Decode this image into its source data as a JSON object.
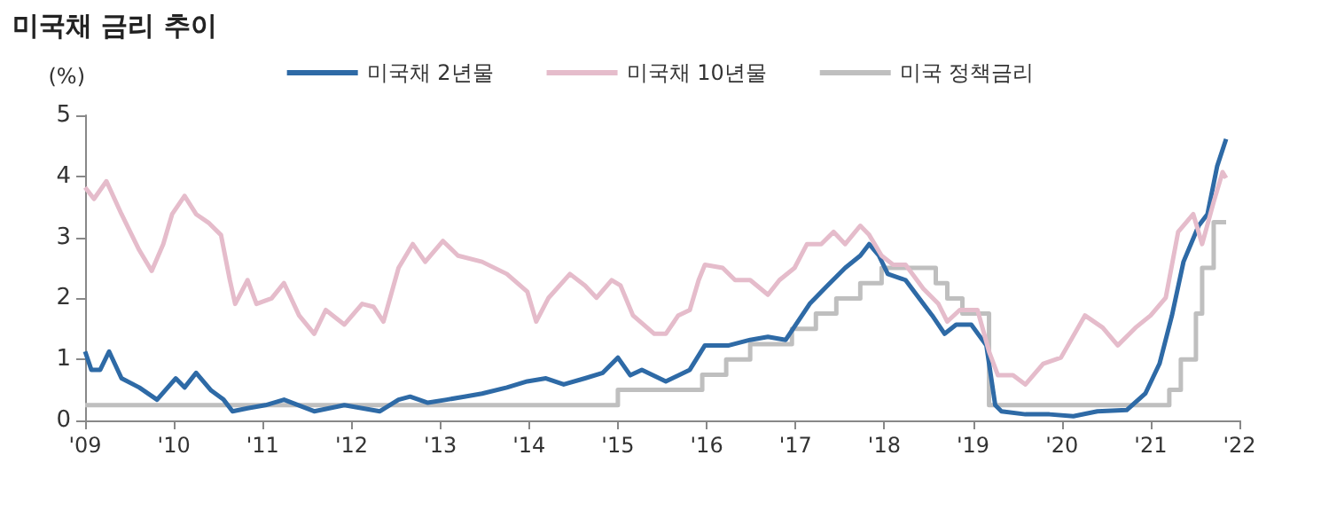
{
  "chart_data": {
    "type": "line",
    "title": "미국채 금리 추이",
    "ylabel": "(%)",
    "legend": "top",
    "grid": false,
    "marker": "none",
    "line_style": "solid",
    "xlim": [
      2009,
      2022
    ],
    "xticks": [
      {
        "value": 2009,
        "label": "'09"
      },
      {
        "value": 2010,
        "label": "'10"
      },
      {
        "value": 2011,
        "label": "'11"
      },
      {
        "value": 2012,
        "label": "'12"
      },
      {
        "value": 2013,
        "label": "'13"
      },
      {
        "value": 2014,
        "label": "'14"
      },
      {
        "value": 2015,
        "label": "'15"
      },
      {
        "value": 2016,
        "label": "'16"
      },
      {
        "value": 2017,
        "label": "'17"
      },
      {
        "value": 2018,
        "label": "'18"
      },
      {
        "value": 2019,
        "label": "'19"
      },
      {
        "value": 2020,
        "label": "'20"
      },
      {
        "value": 2021,
        "label": "'21"
      },
      {
        "value": 2022,
        "label": "'22"
      }
    ],
    "ylim": [
      0,
      5
    ],
    "yticks": [
      0,
      1,
      2,
      3,
      4,
      5
    ],
    "series": [
      {
        "name": "미국채 2년물",
        "color": "#2e6aa6",
        "x": [
          2009.0,
          2009.07,
          2009.17,
          2009.27,
          2009.41,
          2009.61,
          2009.81,
          2010.02,
          2010.12,
          2010.25,
          2010.42,
          2010.56,
          2010.66,
          2010.83,
          2011.03,
          2011.24,
          2011.58,
          2011.92,
          2012.32,
          2012.53,
          2012.66,
          2012.86,
          2013.07,
          2013.27,
          2013.47,
          2013.75,
          2013.98,
          2014.19,
          2014.39,
          2014.63,
          2014.83,
          2015.0,
          2015.14,
          2015.27,
          2015.54,
          2015.81,
          2015.98,
          2016.25,
          2016.49,
          2016.69,
          2016.89,
          2017.16,
          2017.36,
          2017.56,
          2017.73,
          2017.83,
          2017.94,
          2018.04,
          2018.24,
          2018.44,
          2018.54,
          2018.68,
          2018.81,
          2018.98,
          2019.15,
          2019.25,
          2019.32,
          2019.59,
          2019.86,
          2020.13,
          2020.4,
          2020.73,
          2020.94,
          2021.1,
          2021.24,
          2021.37,
          2021.54,
          2021.64,
          2021.75,
          2021.85
        ],
        "values": [
          1.13,
          0.83,
          0.83,
          1.13,
          0.69,
          0.54,
          0.34,
          0.69,
          0.54,
          0.78,
          0.49,
          0.34,
          0.15,
          0.2,
          0.25,
          0.34,
          0.15,
          0.25,
          0.15,
          0.34,
          0.39,
          0.29,
          0.34,
          0.39,
          0.44,
          0.54,
          0.64,
          0.69,
          0.59,
          0.69,
          0.78,
          1.03,
          0.74,
          0.83,
          0.64,
          0.83,
          1.23,
          1.23,
          1.32,
          1.37,
          1.32,
          1.91,
          2.21,
          2.5,
          2.7,
          2.89,
          2.7,
          2.4,
          2.3,
          1.91,
          1.72,
          1.42,
          1.57,
          1.57,
          1.23,
          0.25,
          0.15,
          0.1,
          0.1,
          0.07,
          0.15,
          0.17,
          0.44,
          0.93,
          1.72,
          2.6,
          3.19,
          3.38,
          4.17,
          4.61
        ]
      },
      {
        "name": "미국채 10년물",
        "color": "#e5bccb",
        "x": [
          2009.0,
          2009.1,
          2009.24,
          2009.41,
          2009.61,
          2009.75,
          2009.88,
          2009.98,
          2010.12,
          2010.25,
          2010.39,
          2010.53,
          2010.63,
          2010.69,
          2010.83,
          2010.93,
          2011.1,
          2011.24,
          2011.41,
          2011.58,
          2011.71,
          2011.92,
          2012.12,
          2012.25,
          2012.36,
          2012.53,
          2012.69,
          2012.83,
          2013.03,
          2013.2,
          2013.47,
          2013.75,
          2013.98,
          2014.08,
          2014.22,
          2014.46,
          2014.63,
          2014.76,
          2014.93,
          2015.03,
          2015.17,
          2015.41,
          2015.54,
          2015.68,
          2015.81,
          2015.91,
          2015.98,
          2016.18,
          2016.32,
          2016.49,
          2016.69,
          2016.82,
          2016.99,
          2017.13,
          2017.29,
          2017.43,
          2017.56,
          2017.73,
          2017.83,
          2017.97,
          2018.1,
          2018.24,
          2018.44,
          2018.61,
          2018.71,
          2018.85,
          2019.05,
          2019.18,
          2019.28,
          2019.45,
          2019.59,
          2019.79,
          2019.99,
          2020.26,
          2020.46,
          2020.63,
          2020.83,
          2021.0,
          2021.17,
          2021.31,
          2021.48,
          2021.58,
          2021.71,
          2021.81,
          2021.85
        ],
        "values": [
          3.82,
          3.63,
          3.92,
          3.38,
          2.79,
          2.45,
          2.89,
          3.38,
          3.68,
          3.38,
          3.24,
          3.04,
          2.3,
          1.91,
          2.3,
          1.91,
          2.0,
          2.25,
          1.72,
          1.42,
          1.81,
          1.57,
          1.91,
          1.86,
          1.62,
          2.5,
          2.89,
          2.6,
          2.94,
          2.7,
          2.6,
          2.4,
          2.11,
          1.62,
          2.01,
          2.4,
          2.21,
          2.01,
          2.3,
          2.21,
          1.72,
          1.42,
          1.42,
          1.72,
          1.81,
          2.3,
          2.55,
          2.5,
          2.3,
          2.3,
          2.06,
          2.3,
          2.5,
          2.89,
          2.89,
          3.09,
          2.89,
          3.19,
          3.04,
          2.7,
          2.55,
          2.55,
          2.16,
          1.91,
          1.62,
          1.81,
          1.81,
          1.13,
          0.74,
          0.74,
          0.59,
          0.93,
          1.03,
          1.72,
          1.52,
          1.23,
          1.52,
          1.72,
          2.01,
          3.09,
          3.38,
          2.89,
          3.58,
          4.07,
          3.97
        ]
      },
      {
        "name": "미국 정책금리",
        "type": "step",
        "color": "#bfbfbf",
        "x": [
          2009.0,
          2015.0,
          2015.95,
          2016.22,
          2016.49,
          2016.96,
          2017.23,
          2017.46,
          2017.73,
          2017.97,
          2018.58,
          2018.71,
          2018.88,
          2019.18,
          2021.21,
          2021.34,
          2021.51,
          2021.58,
          2021.71,
          2021.85
        ],
        "values": [
          0.25,
          0.5,
          0.75,
          1.0,
          1.25,
          1.5,
          1.75,
          2.0,
          2.25,
          2.5,
          2.25,
          2.0,
          1.75,
          0.25,
          0.5,
          1.0,
          1.75,
          2.5,
          3.25,
          3.25
        ]
      }
    ]
  }
}
